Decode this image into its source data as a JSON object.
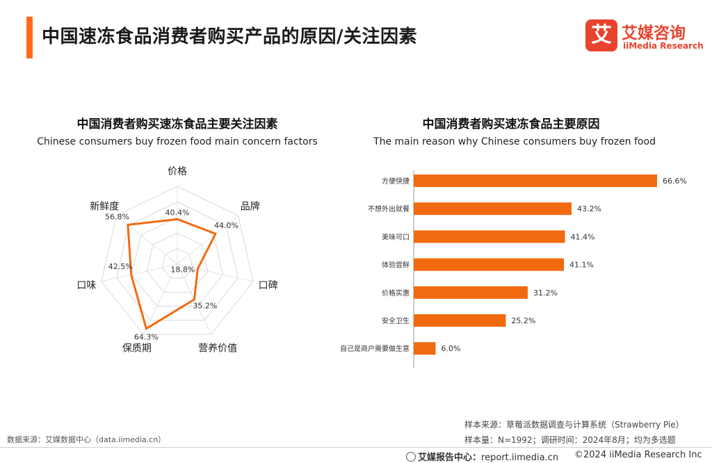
{
  "header": {
    "title": "中国速冻食品消费者购买产品的原因/关注因素",
    "logo_mark": "艾",
    "logo_cn": "艾媒咨询",
    "logo_en": "iiMedia Research"
  },
  "chart_data": [
    {
      "type": "radar",
      "title": "中国消费者购买速冻食品主要关注因素",
      "subtitle": "Chinese consumers buy frozen food main concern factors",
      "categories": [
        "价格",
        "品牌",
        "口碑",
        "营养价值",
        "保质期",
        "口味",
        "新鲜度"
      ],
      "values": [
        40.4,
        44.0,
        18.8,
        35.2,
        64.3,
        42.5,
        56.8
      ],
      "value_labels": [
        "40.4%",
        "44.0%",
        "18.8%",
        "35.2%",
        "64.3%",
        "42.5%",
        "56.8%"
      ],
      "rmax": 70,
      "rings": 5,
      "color": "#f26a10"
    },
    {
      "type": "bar",
      "orientation": "horizontal",
      "title": "中国消费者购买速冻食品主要原因",
      "subtitle": "The main reason why Chinese consumers buy frozen food",
      "categories": [
        "方便快捷",
        "不想外出就餐",
        "美味可口",
        "体验尝鲜",
        "价格实惠",
        "安全卫生",
        "自己是商户需要做生意"
      ],
      "values": [
        66.6,
        43.2,
        41.4,
        41.1,
        31.2,
        25.2,
        6.0
      ],
      "value_labels": [
        "66.6%",
        "43.2%",
        "41.4%",
        "41.1%",
        "31.2%",
        "25.2%",
        "6.0%"
      ],
      "xlim": [
        0,
        66.6
      ],
      "color": "#f26a10"
    }
  ],
  "notes": {
    "source_line": "样本来源：草莓派数据调查与计算系统（Strawberry Pie）",
    "sample_line": "样本量：N=1992；调研时间：2024年8月；均为多选题",
    "data_source": "数据来源：艾媒数据中心（data.iimedia.cn）"
  },
  "footer": {
    "center_label": "艾媒报告中心：",
    "center_url": "report.iimedia.cn",
    "copyright": "©2024  iiMedia Research Inc"
  }
}
